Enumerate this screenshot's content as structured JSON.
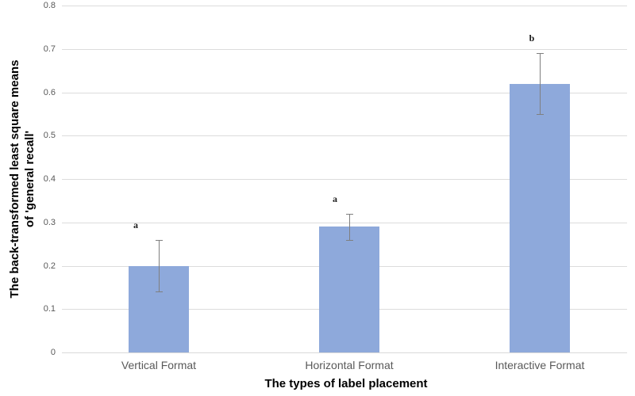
{
  "chart_data": {
    "type": "bar",
    "categories": [
      "Vertical Format",
      "Horizontal Format",
      "Interactive Format"
    ],
    "values": [
      0.2,
      0.29,
      0.62
    ],
    "error_low": [
      0.14,
      0.26,
      0.55
    ],
    "error_high": [
      0.26,
      0.32,
      0.69
    ],
    "sig_letters": [
      "a",
      "a",
      "b"
    ],
    "title": "",
    "xlabel": "The types of label placement",
    "ylabel": "The back-transformed least square means of 'general recall'",
    "ylabel_lines": [
      "The back-transformed least square means",
      "of 'general recall'"
    ],
    "ylim": [
      0,
      0.8
    ],
    "ytick_values": [
      0,
      0.1,
      0.2,
      0.3,
      0.4,
      0.5,
      0.6,
      0.7,
      0.8
    ],
    "ytick_labels": [
      "0",
      "0.1",
      "0.2",
      "0.3",
      "0.4",
      "0.5",
      "0.6",
      "0.7",
      "0.8"
    ],
    "grid": true,
    "legend": "none",
    "colors": {
      "bar_fill": "#8EA9DB",
      "gridline": "#DCDCDC",
      "axis_line": "#D9D9D9",
      "tick_text": "#595959",
      "category_text": "#595959",
      "axis_title_text": "#000000",
      "error_bar": "#7F7F7F",
      "sig_letter": "#1A1A1A",
      "background": "#FFFFFF"
    }
  }
}
